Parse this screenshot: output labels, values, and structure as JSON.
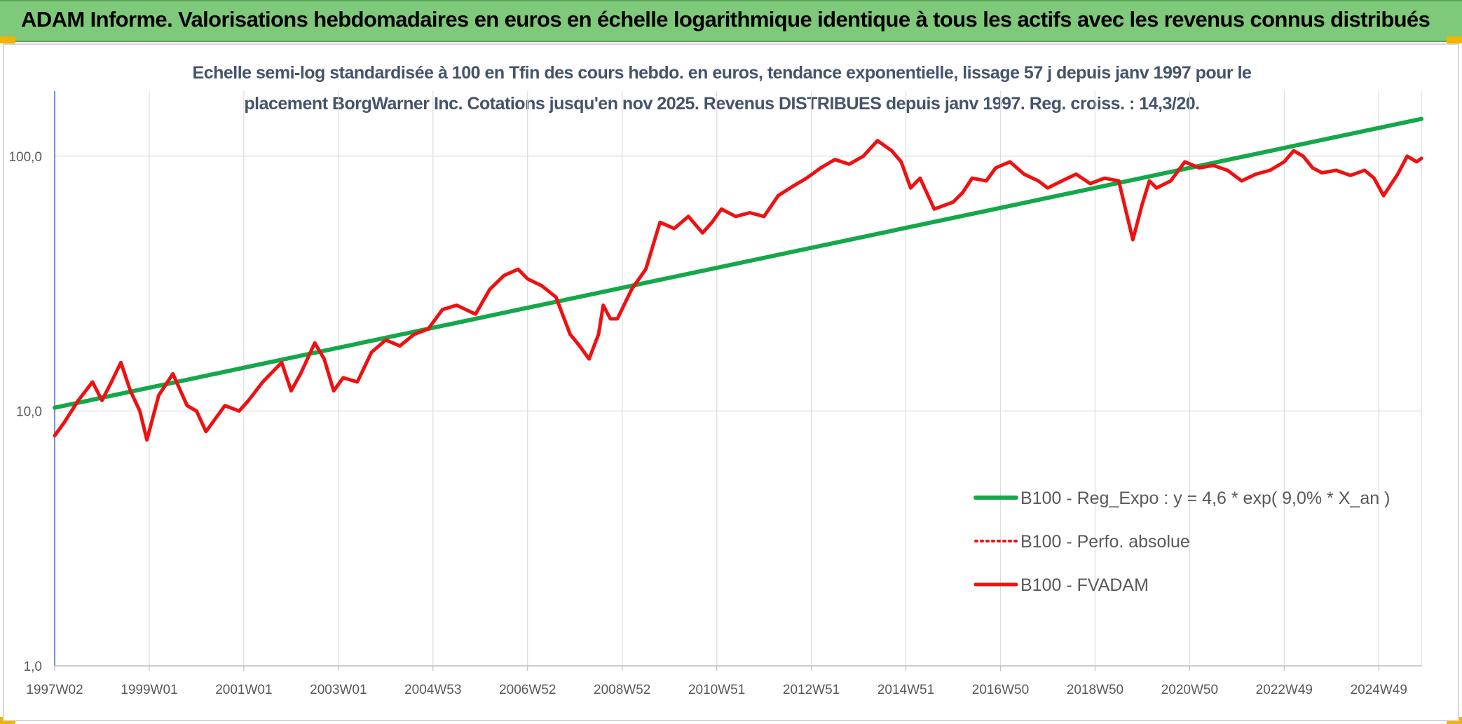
{
  "banner": {
    "title": "ADAM Informe. Valorisations hebdomadaires en euros en échelle logarithmique identique à tous les actifs avec les revenus connus distribués"
  },
  "chart_data": {
    "type": "line",
    "title_line1": "Echelle semi-log standardisée à 100 en Tfin des cours hebdo. en euros, tendance exponentielle, lissage 57 j depuis janv 1997 pour le",
    "title_line2": "placement BorgWarner Inc. Cotations jusqu'en nov 2025. Revenus DISTRIBUES depuis janv 1997. Reg. croiss. : 14,3/20.",
    "y_scale": "log",
    "ylim": [
      1,
      180
    ],
    "y_ticks": [
      1,
      10,
      100
    ],
    "y_tick_labels": [
      "1,0",
      "10,0",
      "100,0"
    ],
    "xlim": [
      1997.0,
      2025.9
    ],
    "x_ticks": [
      1997.0,
      1999.0,
      2001.0,
      2003.0,
      2005.0,
      2007.0,
      2009.0,
      2011.0,
      2013.0,
      2015.0,
      2017.0,
      2019.0,
      2021.0,
      2023.0,
      2025.0
    ],
    "x_tick_labels": [
      "1997W02",
      "1999W01",
      "2001W01",
      "2003W01",
      "2004W53",
      "2006W52",
      "2008W52",
      "2010W51",
      "2012W51",
      "2014W51",
      "2016W50",
      "2018W50",
      "2020W50",
      "2022W49",
      "2024W49"
    ],
    "grid": true,
    "legend_position": "right",
    "series": [
      {
        "name": "B100 - Reg_Expo : y = 4,6 * exp( 9,0% *  X_an )",
        "color": "#14a84a",
        "style": "solid",
        "x": [
          1997.0,
          2025.9
        ],
        "values": [
          10.3,
          140
        ]
      },
      {
        "name": "B100 - Perfo. absolue",
        "color": "#ee1111",
        "style": "dotted",
        "x": [],
        "values": []
      },
      {
        "name": "B100 - FVADAM",
        "color": "#ee1111",
        "style": "solid",
        "x": [
          1997.0,
          1997.2,
          1997.5,
          1997.8,
          1998.0,
          1998.2,
          1998.4,
          1998.6,
          1998.8,
          1998.95,
          1999.2,
          1999.5,
          1999.8,
          2000.0,
          2000.2,
          2000.6,
          2000.9,
          2001.1,
          2001.4,
          2001.8,
          2002.0,
          2002.2,
          2002.5,
          2002.7,
          2002.9,
          2003.1,
          2003.4,
          2003.7,
          2004.0,
          2004.3,
          2004.6,
          2004.9,
          2005.2,
          2005.5,
          2005.9,
          2006.2,
          2006.5,
          2006.8,
          2007.0,
          2007.3,
          2007.6,
          2007.9,
          2008.1,
          2008.3,
          2008.5,
          2008.6,
          2008.75,
          2008.9,
          2009.2,
          2009.5,
          2009.8,
          2010.1,
          2010.4,
          2010.7,
          2010.9,
          2011.1,
          2011.4,
          2011.7,
          2012.0,
          2012.3,
          2012.6,
          2012.9,
          2013.2,
          2013.5,
          2013.8,
          2014.1,
          2014.4,
          2014.7,
          2014.9,
          2015.1,
          2015.3,
          2015.6,
          2015.9,
          2016.0,
          2016.2,
          2016.4,
          2016.7,
          2016.9,
          2017.2,
          2017.5,
          2017.8,
          2018.0,
          2018.3,
          2018.6,
          2018.9,
          2019.2,
          2019.5,
          2019.8,
          2020.0,
          2020.15,
          2020.3,
          2020.6,
          2020.9,
          2021.2,
          2021.5,
          2021.8,
          2022.1,
          2022.4,
          2022.7,
          2023.0,
          2023.2,
          2023.4,
          2023.6,
          2023.8,
          2024.1,
          2024.4,
          2024.7,
          2024.9,
          2025.1,
          2025.4,
          2025.6,
          2025.8,
          2025.9
        ],
        "values": [
          8.0,
          9.0,
          11.0,
          13.0,
          11.0,
          13.0,
          15.5,
          12.0,
          10.0,
          7.7,
          11.5,
          14.0,
          10.5,
          10.0,
          8.3,
          10.5,
          10.0,
          11.0,
          13.0,
          15.5,
          12.0,
          14.0,
          18.5,
          16.0,
          12.0,
          13.5,
          13.0,
          17.0,
          19.0,
          18.0,
          20.0,
          21.0,
          25.0,
          26.0,
          24.0,
          30.0,
          34.0,
          36.0,
          33.0,
          31.0,
          28.0,
          20.0,
          18.0,
          16.0,
          20.0,
          26.0,
          23.0,
          23.0,
          30.0,
          36.0,
          55.0,
          52.0,
          58.0,
          50.0,
          55.0,
          62.0,
          58.0,
          60.0,
          58.0,
          70.0,
          76.0,
          82.0,
          90.0,
          97.0,
          93.0,
          100.0,
          115.0,
          105.0,
          95.0,
          75.0,
          82.0,
          62.0,
          65.0,
          66.0,
          72.0,
          82.0,
          80.0,
          90.0,
          95.0,
          85.0,
          80.0,
          75.0,
          80.0,
          85.0,
          78.0,
          82.0,
          80.0,
          47.0,
          65.0,
          80.0,
          75.0,
          80.0,
          95.0,
          90.0,
          92.0,
          88.0,
          80.0,
          85.0,
          88.0,
          95.0,
          105.0,
          100.0,
          90.0,
          86.0,
          88.0,
          84.0,
          88.0,
          82.0,
          70.0,
          85.0,
          100.0,
          95.0,
          98.0
        ]
      }
    ]
  }
}
